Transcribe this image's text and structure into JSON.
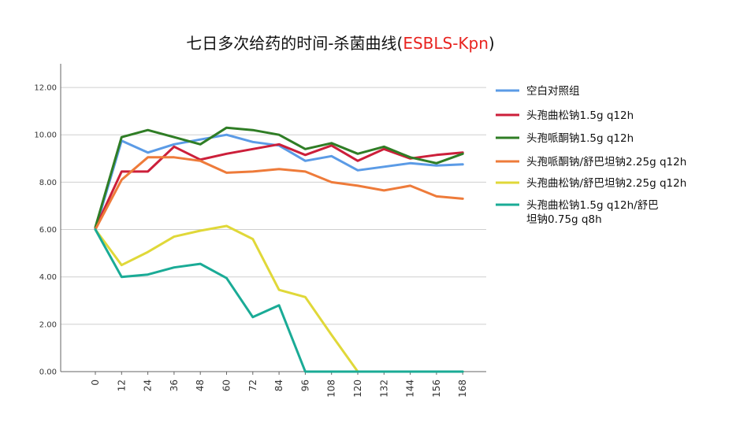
{
  "chart_data": {
    "type": "line",
    "title": "七日多次给药的时间-杀菌曲线(",
    "title_highlight": "ESBLS-Kpn",
    "title_suffix": ")",
    "title_highlight_color": "#e8231f",
    "xlabel": "",
    "ylabel": "",
    "x": [
      0,
      12,
      24,
      36,
      48,
      60,
      72,
      84,
      96,
      108,
      120,
      132,
      144,
      156,
      168
    ],
    "x_tick_labels": [
      "0",
      "12",
      "24",
      "36",
      "48",
      "60",
      "72",
      "84",
      "96",
      "108",
      "120",
      "132",
      "144",
      "156",
      "168"
    ],
    "y_tick_labels": [
      "0.00",
      "2.00",
      "4.00",
      "6.00",
      "8.00",
      "10.00",
      "12.00"
    ],
    "ylim": [
      0,
      13
    ],
    "grid": true,
    "legend_position": "right",
    "series": [
      {
        "name": "空白对照组",
        "color": "#5b9be6",
        "values": [
          6.0,
          9.75,
          9.25,
          9.6,
          9.8,
          10.0,
          9.7,
          9.55,
          8.9,
          9.1,
          8.5,
          8.65,
          8.8,
          8.7,
          8.75
        ]
      },
      {
        "name": "头孢曲松钠1.5g q12h",
        "color": "#cc1f3a",
        "values": [
          6.05,
          8.45,
          8.45,
          9.5,
          8.95,
          9.2,
          9.4,
          9.6,
          9.15,
          9.55,
          8.9,
          9.4,
          9.0,
          9.15,
          9.25
        ]
      },
      {
        "name": "头孢哌酮钠1.5g q12h",
        "color": "#2f7d25",
        "values": [
          6.1,
          9.9,
          10.2,
          9.9,
          9.6,
          10.3,
          10.2,
          10.0,
          9.4,
          9.65,
          9.2,
          9.5,
          9.05,
          8.8,
          9.2
        ]
      },
      {
        "name": "头孢哌酮钠/舒巴坦钠2.25g q12h",
        "color": "#ee7b3a",
        "values": [
          6.0,
          8.1,
          9.05,
          9.05,
          8.9,
          8.4,
          8.45,
          8.55,
          8.45,
          8.0,
          7.85,
          7.65,
          7.85,
          7.4,
          7.3
        ]
      },
      {
        "name": "头孢曲松钠/舒巴坦钠2.25g q12h",
        "color": "#e0d839",
        "values": [
          6.0,
          4.5,
          5.05,
          5.7,
          5.95,
          6.15,
          5.6,
          3.45,
          3.15,
          1.55,
          0.0,
          0.0,
          0.0,
          0.0,
          0.0
        ]
      },
      {
        "name": "头孢曲松钠1.5g q12h/舒巴坦钠0.75g q8h",
        "legend_lines": [
          "头孢曲松钠1.5g q12h/舒巴",
          "坦钠0.75g q8h"
        ],
        "color": "#1aab96",
        "values": [
          6.0,
          4.0,
          4.1,
          4.4,
          4.55,
          3.95,
          2.3,
          2.8,
          0.0,
          0.0,
          0.0,
          0.0,
          0.0,
          0.0,
          0.0
        ]
      }
    ]
  }
}
